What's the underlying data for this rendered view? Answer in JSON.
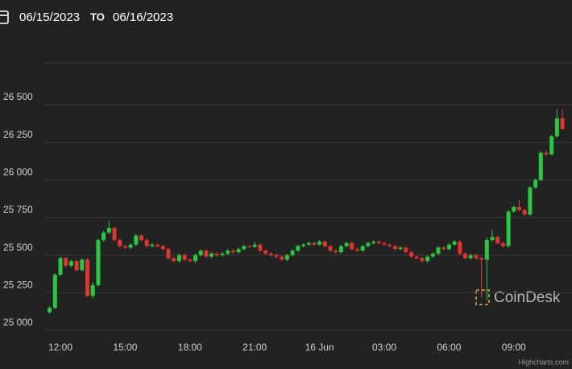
{
  "header": {
    "from": "06/15/2023",
    "to_label": "TO",
    "to": "06/16/2023"
  },
  "chart_data": {
    "type": "candlestick",
    "watermark": "CoinDesk",
    "credits": "Highcharts.com",
    "up_color": "#27c93f",
    "down_color": "#e3342f",
    "grid": true,
    "ylim": [
      25000,
      26750
    ],
    "yticks": [
      {
        "value": 25000,
        "label": "25 000"
      },
      {
        "value": 25250,
        "label": "25 250"
      },
      {
        "value": 25500,
        "label": "25 500"
      },
      {
        "value": 25750,
        "label": "25 750"
      },
      {
        "value": 26000,
        "label": "26 000"
      },
      {
        "value": 26250,
        "label": "26 250"
      },
      {
        "value": 26500,
        "label": "26 500"
      }
    ],
    "categories": [
      null,
      null,
      "12:00",
      null,
      null,
      null,
      null,
      null,
      null,
      null,
      null,
      null,
      null,
      null,
      "15:00",
      null,
      null,
      null,
      null,
      null,
      null,
      null,
      null,
      null,
      null,
      null,
      "18:00",
      null,
      null,
      null,
      null,
      null,
      null,
      null,
      null,
      null,
      null,
      null,
      "21:00",
      null,
      null,
      null,
      null,
      null,
      null,
      null,
      null,
      null,
      null,
      null,
      "16 Jun",
      null,
      null,
      null,
      null,
      null,
      null,
      null,
      null,
      null,
      null,
      null,
      "03:00",
      null,
      null,
      null,
      null,
      null,
      null,
      null,
      null,
      null,
      null,
      null,
      "06:00",
      null,
      null,
      null,
      null,
      null,
      null,
      null,
      null,
      null,
      null,
      null,
      "09:00",
      null,
      null,
      null,
      null,
      null,
      null,
      null,
      null,
      null
    ],
    "open": [
      25120,
      25150,
      25370,
      25480,
      25430,
      25460,
      25400,
      25470,
      25230,
      25300,
      25600,
      25650,
      25680,
      25600,
      25560,
      25550,
      25570,
      25630,
      25600,
      25560,
      25570,
      25560,
      25540,
      25480,
      25460,
      25500,
      25470,
      25460,
      25500,
      25530,
      25490,
      25510,
      25500,
      25510,
      25530,
      25520,
      25540,
      25560,
      25555,
      25570,
      25530,
      25510,
      25500,
      25490,
      25470,
      25500,
      25530,
      25560,
      25570,
      25580,
      25570,
      25590,
      25560,
      25530,
      25520,
      25560,
      25580,
      25540,
      25530,
      25560,
      25580,
      25590,
      25580,
      25570,
      25560,
      25540,
      25550,
      25520,
      25490,
      25480,
      25460,
      25490,
      25510,
      25550,
      25540,
      25570,
      25590,
      25510,
      25480,
      25500,
      25480,
      25470,
      25600,
      25620,
      25580,
      25560,
      25790,
      25820,
      25800,
      25770,
      25950,
      26000,
      26180,
      26170,
      26290,
      26410
    ],
    "high": [
      25160,
      25380,
      25490,
      25490,
      25470,
      25470,
      25480,
      25480,
      25320,
      25610,
      25660,
      25730,
      25690,
      25610,
      25570,
      25580,
      25640,
      25640,
      25610,
      25580,
      25580,
      25570,
      25550,
      25490,
      25510,
      25510,
      25480,
      25510,
      25540,
      25540,
      25520,
      25520,
      25520,
      25540,
      25540,
      25550,
      25570,
      25570,
      25590,
      25580,
      25540,
      25520,
      25510,
      25500,
      25510,
      25540,
      25570,
      25580,
      25590,
      25590,
      25600,
      25600,
      25570,
      25540,
      25570,
      25590,
      25590,
      25550,
      25570,
      25590,
      25600,
      25600,
      25590,
      25580,
      25570,
      25560,
      25560,
      25530,
      25500,
      25490,
      25500,
      25520,
      25560,
      25560,
      25580,
      25600,
      25600,
      25520,
      25510,
      25510,
      25490,
      25620,
      25670,
      25630,
      25590,
      25800,
      25830,
      25870,
      25810,
      25960,
      26010,
      26190,
      26200,
      26300,
      26470,
      26470
    ],
    "low": [
      25110,
      25140,
      25360,
      25420,
      25420,
      25390,
      25390,
      25220,
      25210,
      25290,
      25590,
      25640,
      25590,
      25550,
      25540,
      25540,
      25560,
      25590,
      25550,
      25550,
      25550,
      25530,
      25470,
      25450,
      25450,
      25460,
      25450,
      25450,
      25490,
      25480,
      25480,
      25490,
      25490,
      25500,
      25510,
      25510,
      25530,
      25545,
      25545,
      25520,
      25500,
      25490,
      25480,
      25460,
      25460,
      25490,
      25520,
      25550,
      25560,
      25560,
      25560,
      25550,
      25520,
      25510,
      25510,
      25550,
      25530,
      25520,
      25520,
      25550,
      25570,
      25570,
      25560,
      25550,
      25530,
      25530,
      25510,
      25480,
      25470,
      25450,
      25450,
      25480,
      25500,
      25530,
      25530,
      25560,
      25500,
      25470,
      25470,
      25470,
      25220,
      25200,
      25590,
      25570,
      25550,
      25550,
      25780,
      25790,
      25760,
      25760,
      25940,
      25990,
      26160,
      26160,
      26280,
      26330
    ],
    "close": [
      25150,
      25370,
      25480,
      25430,
      25460,
      25400,
      25470,
      25230,
      25300,
      25600,
      25650,
      25680,
      25600,
      25560,
      25550,
      25570,
      25630,
      25600,
      25560,
      25570,
      25560,
      25540,
      25480,
      25460,
      25500,
      25470,
      25460,
      25500,
      25530,
      25490,
      25510,
      25500,
      25510,
      25530,
      25520,
      25540,
      25560,
      25555,
      25570,
      25530,
      25510,
      25500,
      25490,
      25470,
      25500,
      25530,
      25560,
      25570,
      25580,
      25570,
      25590,
      25560,
      25530,
      25520,
      25560,
      25580,
      25540,
      25530,
      25560,
      25580,
      25590,
      25580,
      25570,
      25560,
      25540,
      25550,
      25520,
      25490,
      25480,
      25460,
      25490,
      25510,
      25550,
      25540,
      25570,
      25590,
      25510,
      25480,
      25500,
      25480,
      25470,
      25600,
      25620,
      25580,
      25560,
      25790,
      25820,
      25800,
      25770,
      25950,
      26000,
      26180,
      26170,
      26290,
      26410,
      26340
    ]
  }
}
